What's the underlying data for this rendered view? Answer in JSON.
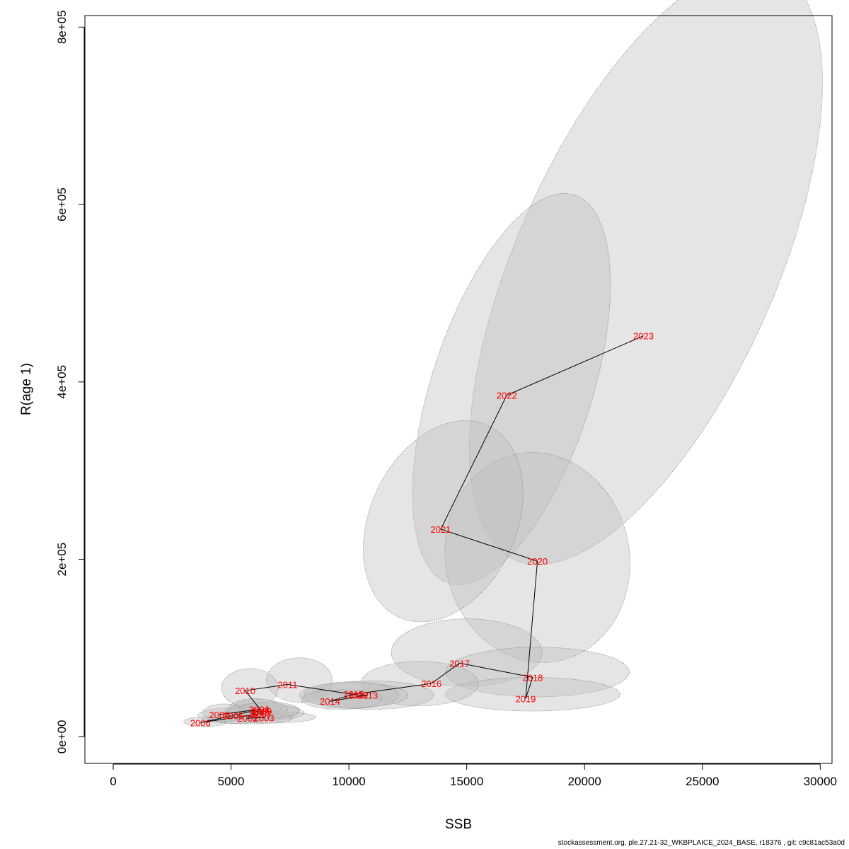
{
  "chart_data": {
    "type": "scatter",
    "title": "",
    "xlabel": "SSB",
    "ylabel": "R(age 1)",
    "xlim": [
      -1200,
      30500
    ],
    "ylim": [
      -30000,
      813000
    ],
    "x_ticks": [
      0,
      5000,
      10000,
      15000,
      20000,
      25000,
      30000
    ],
    "x_tick_labels": [
      "0",
      "5000",
      "10000",
      "15000",
      "20000",
      "25000",
      "30000"
    ],
    "y_ticks": [
      0,
      200000,
      400000,
      600000,
      800000
    ],
    "y_tick_labels": [
      "0e+00",
      "2e+05",
      "4e+05",
      "6e+05",
      "8e+05"
    ],
    "grid": false,
    "colors": {
      "path": "#000000",
      "labels": "#ff0000",
      "ellipse_fill": "#bebebe",
      "ellipse_border": "#8c8c8c"
    },
    "points": [
      {
        "year": "2000",
        "ssb": 4500,
        "rec": 25000,
        "ellipse": {
          "cx": 4700,
          "cy": 27000,
          "rx": 900,
          "ry": 10000,
          "angle": 0
        }
      },
      {
        "year": "2001",
        "ssb": 6200,
        "rec": 31000,
        "ellipse": {
          "cx": 6000,
          "cy": 31000,
          "rx": 1100,
          "ry": 12000,
          "angle": 0
        }
      },
      {
        "year": "2002",
        "ssb": 5700,
        "rec": 21000,
        "ellipse": {
          "cx": 5800,
          "cy": 21000,
          "rx": 1800,
          "ry": 6500,
          "angle": 0
        }
      },
      {
        "year": "2003",
        "ssb": 6400,
        "rec": 21500,
        "ellipse": {
          "cx": 6600,
          "cy": 22000,
          "rx": 2000,
          "ry": 6500,
          "angle": 0
        }
      },
      {
        "year": "2004",
        "ssb": 6200,
        "rec": 31000,
        "ellipse": {
          "cx": 6200,
          "cy": 30000,
          "rx": 1200,
          "ry": 12000,
          "angle": 0
        }
      },
      {
        "year": "2005",
        "ssb": 5100,
        "rec": 24000,
        "ellipse": {
          "cx": 5200,
          "cy": 24000,
          "rx": 1600,
          "ry": 9000,
          "angle": 0
        }
      },
      {
        "year": "2006",
        "ssb": 3700,
        "rec": 16000,
        "ellipse": {
          "cx": 3900,
          "cy": 17000,
          "rx": 900,
          "ry": 5500,
          "angle": 0
        }
      },
      {
        "year": "2007",
        "ssb": 6300,
        "rec": 26000,
        "ellipse": {
          "cx": 6400,
          "cy": 27000,
          "rx": 1700,
          "ry": 9000,
          "angle": 0
        }
      },
      {
        "year": "2008",
        "ssb": 6200,
        "rec": 28000,
        "ellipse": {
          "cx": 6300,
          "cy": 28500,
          "rx": 1600,
          "ry": 9500,
          "angle": 0
        }
      },
      {
        "year": "2009",
        "ssb": 6300,
        "rec": 29000,
        "ellipse": {
          "cx": 6600,
          "cy": 30000,
          "rx": 1300,
          "ry": 9000,
          "angle": 0
        }
      },
      {
        "year": "2010",
        "ssb": 5600,
        "rec": 52000,
        "ellipse": {
          "cx": 5800,
          "cy": 55000,
          "rx": 1200,
          "ry": 22000,
          "angle": 0
        }
      },
      {
        "year": "2011",
        "ssb": 7400,
        "rec": 59000,
        "ellipse": {
          "cx": 7900,
          "cy": 64000,
          "rx": 1400,
          "ry": 25000,
          "angle": 0
        }
      },
      {
        "year": "2012",
        "ssb": 10400,
        "rec": 47000,
        "ellipse": {
          "cx": 10200,
          "cy": 47000,
          "rx": 2300,
          "ry": 14000,
          "angle": 0
        }
      },
      {
        "year": "2013",
        "ssb": 10800,
        "rec": 47000,
        "ellipse": {
          "cx": 11000,
          "cy": 47000,
          "rx": 2600,
          "ry": 16000,
          "angle": 0
        }
      },
      {
        "year": "2014",
        "ssb": 9200,
        "rec": 40000,
        "ellipse": {
          "cx": 9700,
          "cy": 42000,
          "rx": 1700,
          "ry": 11000,
          "angle": 0
        }
      },
      {
        "year": "2015",
        "ssb": 10200,
        "rec": 48000,
        "ellipse": {
          "cx": 10100,
          "cy": 47000,
          "rx": 2000,
          "ry": 15000,
          "angle": 0
        }
      },
      {
        "year": "2016",
        "ssb": 13500,
        "rec": 60000,
        "ellipse": {
          "cx": 13000,
          "cy": 60000,
          "rx": 2500,
          "ry": 25000,
          "angle": 0
        }
      },
      {
        "year": "2017",
        "ssb": 14700,
        "rec": 83000,
        "ellipse": {
          "cx": 15000,
          "cy": 95000,
          "rx": 3200,
          "ry": 38000,
          "angle": 0
        }
      },
      {
        "year": "2018",
        "ssb": 17800,
        "rec": 67000,
        "ellipse": {
          "cx": 18000,
          "cy": 73000,
          "rx": 3900,
          "ry": 28000,
          "angle": 0
        }
      },
      {
        "year": "2019",
        "ssb": 17500,
        "rec": 43000,
        "ellipse": {
          "cx": 17800,
          "cy": 48000,
          "rx": 3700,
          "ry": 19000,
          "angle": 0
        }
      },
      {
        "year": "2020",
        "ssb": 18000,
        "rec": 198000,
        "ellipse": {
          "cx": 18000,
          "cy": 202000,
          "rx": 3900,
          "ry": 119000,
          "angle": -12
        }
      },
      {
        "year": "2021",
        "ssb": 13900,
        "rec": 234000,
        "ellipse": {
          "cx": 14000,
          "cy": 243000,
          "rx": 3100,
          "ry": 119000,
          "angle": 25
        }
      },
      {
        "year": "2022",
        "ssb": 16700,
        "rec": 385000,
        "ellipse": {
          "cx": 16900,
          "cy": 392000,
          "rx": 3400,
          "ry": 230000,
          "angle": 18
        }
      },
      {
        "year": "2023",
        "ssb": 22500,
        "rec": 452000,
        "ellipse": {
          "cx": 22600,
          "cy": 531000,
          "rx": 5500,
          "ry": 363000,
          "angle": 24
        }
      }
    ]
  },
  "footer": {
    "text": "stockassessment.org, ple.27.21-32_WKBPLAICE_2024_BASE, r18376 , git: c9c81ac53a0d"
  }
}
